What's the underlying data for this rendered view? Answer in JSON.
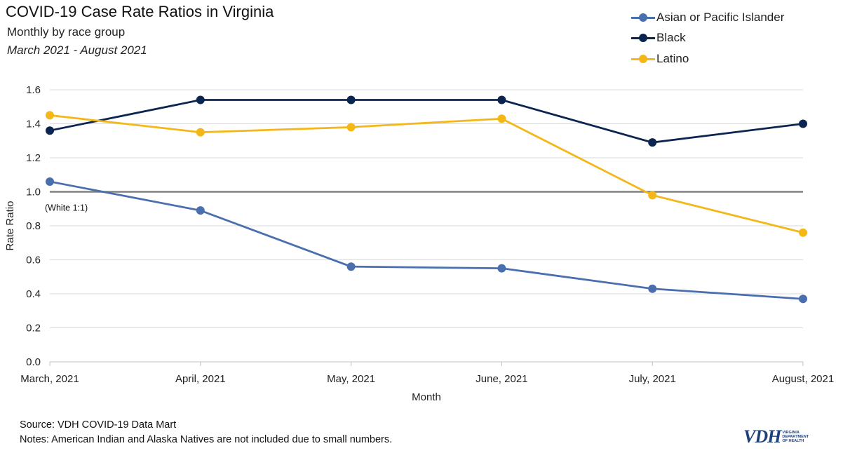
{
  "chart_data": {
    "type": "line",
    "title": "COVID-19 Case Rate Ratios in Virginia",
    "subtitle": "Monthly by race group",
    "date_range": "March 2021 - August 2021",
    "xlabel": "Month",
    "ylabel": "Rate Ratio",
    "categories": [
      "March, 2021",
      "April, 2021",
      "May, 2021",
      "June, 2021",
      "July, 2021",
      "August, 2021"
    ],
    "ylim": [
      0,
      1.6
    ],
    "yticks": [
      "0.0",
      "0.2",
      "0.4",
      "0.6",
      "0.8",
      "1.0",
      "1.2",
      "1.4",
      "1.6"
    ],
    "grid": true,
    "legend_position": "top-right",
    "reference_line": {
      "value": 1.0,
      "label": "(White 1:1)",
      "color": "#808080"
    },
    "series": [
      {
        "name": "Asian or Pacific Islander",
        "color": "#4a6fae",
        "values": [
          1.06,
          0.89,
          0.56,
          0.55,
          0.43,
          0.37
        ]
      },
      {
        "name": "Black",
        "color": "#0c2450",
        "values": [
          1.36,
          1.54,
          1.54,
          1.54,
          1.29,
          1.4
        ]
      },
      {
        "name": "Latino",
        "color": "#f5b718",
        "values": [
          1.45,
          1.35,
          1.38,
          1.43,
          0.98,
          0.76
        ]
      }
    ]
  },
  "footer": {
    "source": "Source: VDH COVID-19 Data Mart",
    "notes": "Notes: American Indian and Alaska Natives are not included due to small numbers."
  },
  "logo": {
    "mark": "VDH",
    "line1": "VIRGINIA",
    "line2": "DEPARTMENT",
    "line3": "OF HEALTH"
  }
}
